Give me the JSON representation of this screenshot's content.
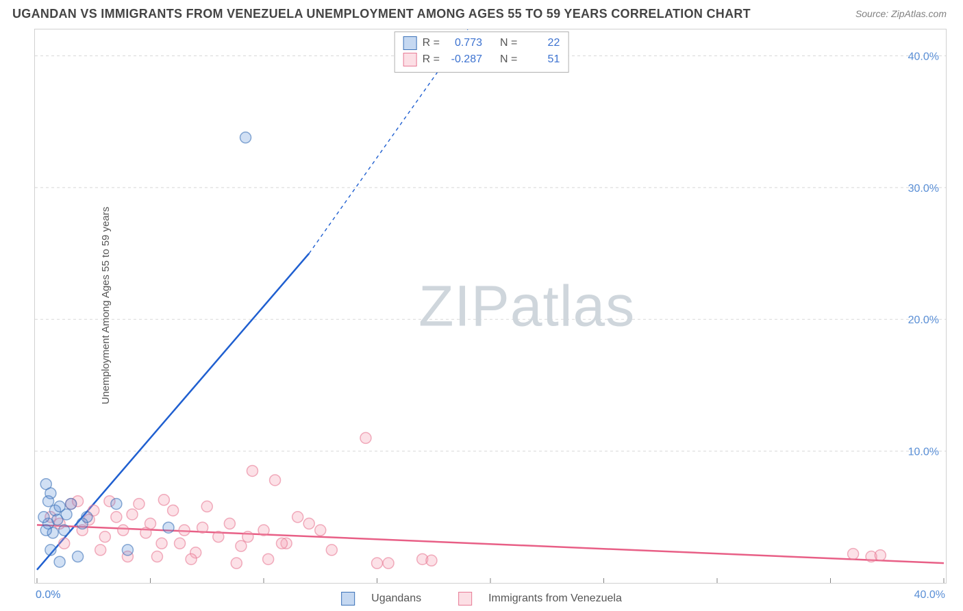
{
  "title": "UGANDAN VS IMMIGRANTS FROM VENEZUELA UNEMPLOYMENT AMONG AGES 55 TO 59 YEARS CORRELATION CHART",
  "source": "Source: ZipAtlas.com",
  "yaxis_label": "Unemployment Among Ages 55 to 59 years",
  "watermark_a": "ZIP",
  "watermark_b": "atlas",
  "chart": {
    "type": "scatter",
    "xlim": [
      0,
      40
    ],
    "ylim": [
      0,
      42
    ],
    "xticks": [
      0,
      5,
      10,
      15,
      20,
      25,
      30,
      35,
      40
    ],
    "yticks": [
      10,
      20,
      30,
      40
    ],
    "xtick_labels_shown": {
      "0": "0.0%",
      "40": "40.0%"
    },
    "ytick_labels": [
      "10.0%",
      "20.0%",
      "30.0%",
      "40.0%"
    ],
    "grid_color": "#d8d8d8",
    "background": "#ffffff",
    "marker_radius": 8,
    "series": [
      {
        "name": "Ugandans",
        "color_fill": "#5a8fd6",
        "color_stroke": "#3c72b8",
        "trend_color": "#1f5fd0",
        "R": "0.773",
        "N": "22",
        "trend": {
          "x1": 0,
          "y1": 1.0,
          "x2_solid": 12,
          "y2_solid": 25,
          "x2_dash": 19,
          "y2_dash": 42
        },
        "points": [
          [
            0.4,
            7.5
          ],
          [
            0.6,
            6.8
          ],
          [
            0.8,
            5.5
          ],
          [
            0.5,
            4.5
          ],
          [
            1.5,
            6.0
          ],
          [
            1.2,
            4.0
          ],
          [
            0.3,
            5.0
          ],
          [
            0.7,
            3.8
          ],
          [
            1.0,
            5.8
          ],
          [
            2.0,
            4.5
          ],
          [
            0.6,
            2.5
          ],
          [
            1.8,
            2.0
          ],
          [
            3.5,
            6.0
          ],
          [
            4.0,
            2.5
          ],
          [
            0.9,
            4.8
          ],
          [
            2.2,
            5.0
          ],
          [
            0.5,
            6.2
          ],
          [
            1.3,
            5.2
          ],
          [
            5.8,
            4.2
          ],
          [
            0.4,
            4.0
          ],
          [
            1.0,
            1.6
          ],
          [
            9.2,
            33.8
          ]
        ]
      },
      {
        "name": "Immigrants from Venezuela",
        "color_fill": "#f5a3b5",
        "color_stroke": "#e77a95",
        "trend_color": "#e85f86",
        "R": "-0.287",
        "N": "51",
        "trend": {
          "x1": 0,
          "y1": 4.4,
          "x2_solid": 40,
          "y2_solid": 1.5
        },
        "points": [
          [
            0.6,
            5.0
          ],
          [
            1.0,
            4.5
          ],
          [
            1.5,
            6.0
          ],
          [
            2.0,
            4.0
          ],
          [
            2.5,
            5.5
          ],
          [
            3.0,
            3.5
          ],
          [
            3.5,
            5.0
          ],
          [
            4.0,
            2.0
          ],
          [
            4.5,
            6.0
          ],
          [
            5.0,
            4.5
          ],
          [
            5.5,
            3.0
          ],
          [
            6.0,
            5.5
          ],
          [
            6.5,
            4.0
          ],
          [
            7.0,
            2.3
          ],
          [
            7.5,
            5.8
          ],
          [
            8.0,
            3.5
          ],
          [
            8.5,
            4.5
          ],
          [
            9.0,
            2.8
          ],
          [
            9.5,
            8.5
          ],
          [
            10.0,
            4.0
          ],
          [
            10.5,
            7.8
          ],
          [
            11.0,
            3.0
          ],
          [
            11.5,
            5.0
          ],
          [
            12.0,
            4.5
          ],
          [
            1.2,
            3.0
          ],
          [
            2.8,
            2.5
          ],
          [
            3.2,
            6.2
          ],
          [
            4.8,
            3.8
          ],
          [
            5.3,
            2.0
          ],
          [
            6.8,
            1.8
          ],
          [
            7.3,
            4.2
          ],
          [
            8.8,
            1.5
          ],
          [
            9.3,
            3.5
          ],
          [
            10.2,
            1.8
          ],
          [
            10.8,
            3.0
          ],
          [
            12.5,
            4.0
          ],
          [
            13.0,
            2.5
          ],
          [
            14.5,
            11.0
          ],
          [
            15.0,
            1.5
          ],
          [
            15.5,
            1.5
          ],
          [
            17.0,
            1.8
          ],
          [
            17.4,
            1.7
          ],
          [
            4.2,
            5.2
          ],
          [
            5.6,
            6.3
          ],
          [
            2.3,
            4.8
          ],
          [
            1.8,
            6.2
          ],
          [
            3.8,
            4.0
          ],
          [
            6.3,
            3.0
          ],
          [
            36.0,
            2.2
          ],
          [
            36.8,
            2.0
          ],
          [
            37.2,
            2.1
          ]
        ]
      }
    ]
  },
  "legend": {
    "r_label": "R =",
    "n_label": "N ="
  },
  "bottom_legend": {
    "ugandans": "Ugandans",
    "venezuela": "Immigrants from Venezuela"
  }
}
